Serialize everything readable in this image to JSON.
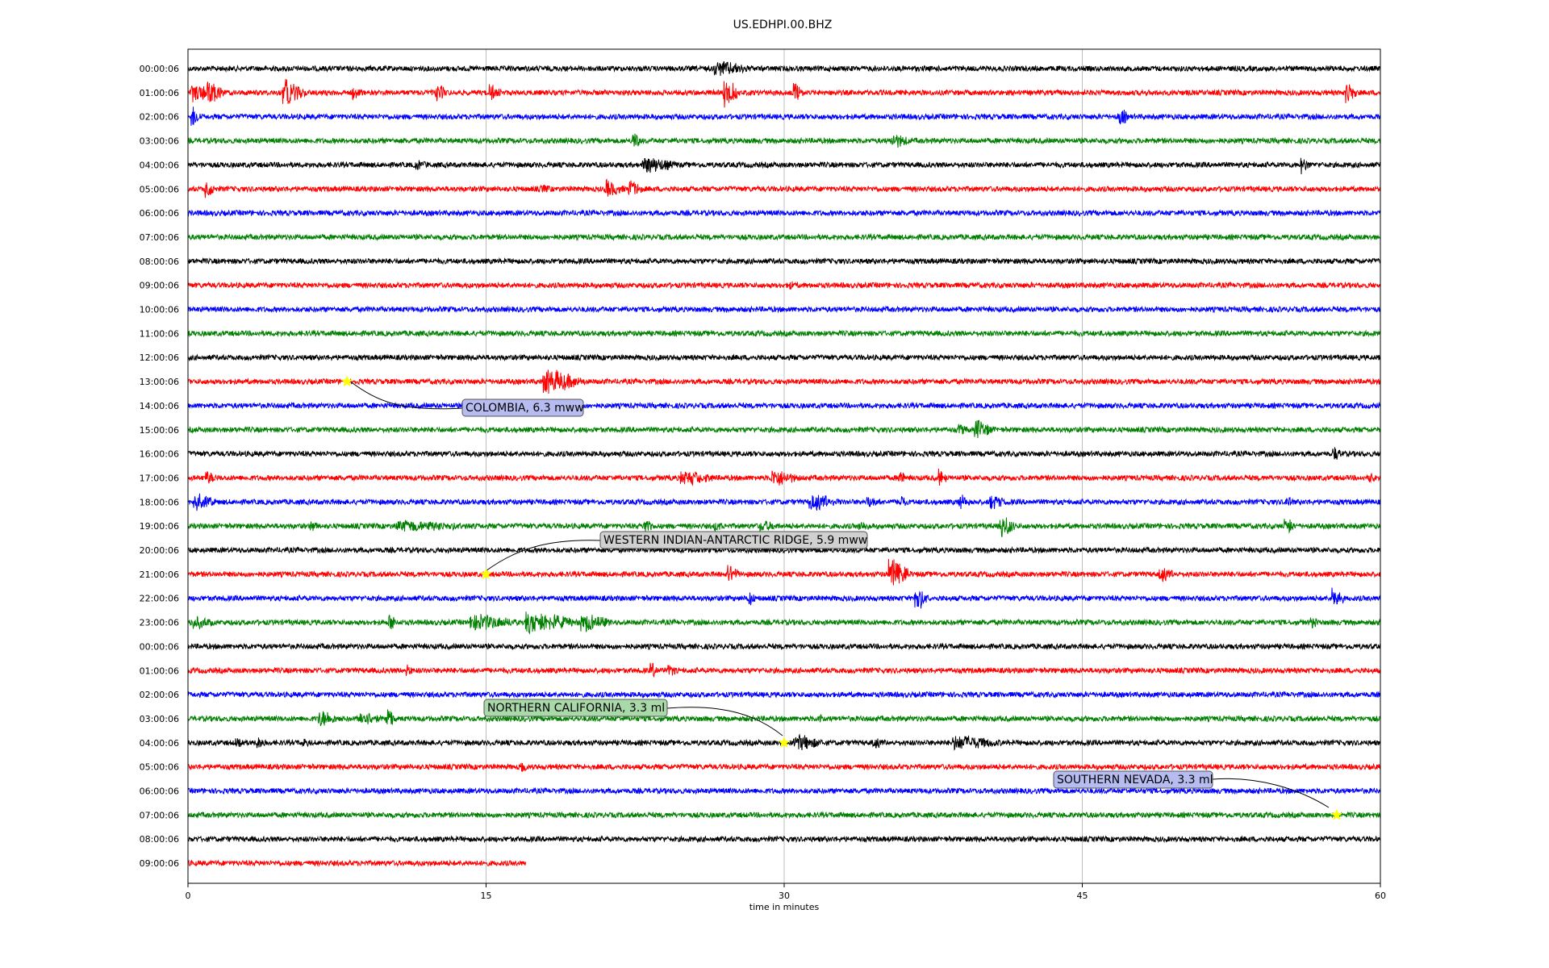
{
  "chart_data": {
    "type": "line",
    "title": "US.EDHPI.00.BHZ",
    "xlabel": "time in minutes",
    "xlim": [
      0,
      60
    ],
    "xticks": [
      0,
      15,
      30,
      45,
      60
    ],
    "grid": "vertical",
    "row_colors": [
      "#000000",
      "#ff0000",
      "#0000ff",
      "#008000"
    ],
    "rows": [
      {
        "label": "00:00:06",
        "end": 60,
        "events": [
          {
            "t": 26.5,
            "a": 0.5,
            "d": 2.0
          }
        ]
      },
      {
        "label": "01:00:06",
        "end": 60,
        "events": [
          {
            "t": 0.2,
            "a": 0.6,
            "d": 1.5
          },
          {
            "t": 1.0,
            "a": 0.7,
            "d": 1.0
          },
          {
            "t": 4.8,
            "a": 1.0,
            "d": 1.2
          },
          {
            "t": 8.3,
            "a": 0.4,
            "d": 0.5
          },
          {
            "t": 12.5,
            "a": 0.6,
            "d": 0.6
          },
          {
            "t": 15.2,
            "a": 0.5,
            "d": 0.6
          },
          {
            "t": 27.0,
            "a": 1.2,
            "d": 0.8
          },
          {
            "t": 30.5,
            "a": 0.6,
            "d": 0.5
          },
          {
            "t": 58.3,
            "a": 1.0,
            "d": 0.6
          }
        ]
      },
      {
        "label": "02:00:06",
        "end": 60,
        "events": [
          {
            "t": 0.2,
            "a": 0.8,
            "d": 0.5
          },
          {
            "t": 46.9,
            "a": 0.8,
            "d": 0.4
          }
        ]
      },
      {
        "label": "03:00:06",
        "end": 60,
        "events": [
          {
            "t": 22.4,
            "a": 0.6,
            "d": 0.4
          },
          {
            "t": 35.4,
            "a": 0.5,
            "d": 1.0
          }
        ]
      },
      {
        "label": "04:00:06",
        "end": 60,
        "events": [
          {
            "t": 11.5,
            "a": 0.3,
            "d": 0.5
          },
          {
            "t": 22.9,
            "a": 0.6,
            "d": 1.8
          },
          {
            "t": 56.0,
            "a": 0.6,
            "d": 0.5
          }
        ]
      },
      {
        "label": "05:00:06",
        "end": 60,
        "events": [
          {
            "t": 0.9,
            "a": 0.6,
            "d": 0.5
          },
          {
            "t": 17.8,
            "a": 0.2,
            "d": 0.5
          },
          {
            "t": 21.0,
            "a": 0.6,
            "d": 1.0
          },
          {
            "t": 22.2,
            "a": 0.6,
            "d": 0.7
          }
        ]
      },
      {
        "label": "06:00:06",
        "end": 60,
        "events": []
      },
      {
        "label": "07:00:06",
        "end": 60,
        "events": []
      },
      {
        "label": "08:00:06",
        "end": 60,
        "events": []
      },
      {
        "label": "09:00:06",
        "end": 60,
        "events": [
          {
            "t": 30.3,
            "a": 0.2,
            "d": 0.3
          }
        ]
      },
      {
        "label": "10:00:06",
        "end": 60,
        "events": []
      },
      {
        "label": "11:00:06",
        "end": 60,
        "events": []
      },
      {
        "label": "12:00:06",
        "end": 60,
        "events": []
      },
      {
        "label": "13:00:06",
        "end": 60,
        "events": [
          {
            "t": 17.9,
            "a": 0.9,
            "d": 2.2
          }
        ]
      },
      {
        "label": "14:00:06",
        "end": 60,
        "events": []
      },
      {
        "label": "15:00:06",
        "end": 60,
        "events": [
          {
            "t": 38.8,
            "a": 0.3,
            "d": 0.6
          },
          {
            "t": 39.6,
            "a": 0.7,
            "d": 1.0
          }
        ]
      },
      {
        "label": "16:00:06",
        "end": 60,
        "events": [
          {
            "t": 57.6,
            "a": 0.5,
            "d": 0.5
          }
        ]
      },
      {
        "label": "17:00:06",
        "end": 60,
        "events": [
          {
            "t": 0.9,
            "a": 0.5,
            "d": 0.5
          },
          {
            "t": 24.8,
            "a": 0.5,
            "d": 1.8
          },
          {
            "t": 29.4,
            "a": 0.6,
            "d": 1.4
          },
          {
            "t": 35.8,
            "a": 0.7,
            "d": 0.3
          },
          {
            "t": 37.8,
            "a": 0.6,
            "d": 0.4
          },
          {
            "t": 59.5,
            "a": 0.3,
            "d": 0.3
          }
        ]
      },
      {
        "label": "18:00:06",
        "end": 60,
        "events": [
          {
            "t": 0.3,
            "a": 0.6,
            "d": 1.2
          },
          {
            "t": 31.3,
            "a": 0.6,
            "d": 1.6
          },
          {
            "t": 34.2,
            "a": 0.4,
            "d": 0.6
          },
          {
            "t": 35.8,
            "a": 0.5,
            "d": 0.4
          },
          {
            "t": 38.8,
            "a": 0.5,
            "d": 0.6
          },
          {
            "t": 40.4,
            "a": 0.5,
            "d": 0.8
          },
          {
            "t": 55.3,
            "a": 0.3,
            "d": 0.3
          }
        ]
      },
      {
        "label": "19:00:06",
        "end": 60,
        "events": [
          {
            "t": 6.2,
            "a": 0.3,
            "d": 0.4
          },
          {
            "t": 10.5,
            "a": 0.3,
            "d": 4.0
          },
          {
            "t": 23.0,
            "a": 0.6,
            "d": 0.5
          },
          {
            "t": 26.5,
            "a": 0.3,
            "d": 0.4
          },
          {
            "t": 28.8,
            "a": 0.3,
            "d": 1.0
          },
          {
            "t": 33.8,
            "a": 0.3,
            "d": 0.6
          },
          {
            "t": 40.9,
            "a": 0.9,
            "d": 0.8
          },
          {
            "t": 55.2,
            "a": 0.8,
            "d": 0.5
          }
        ]
      },
      {
        "label": "20:00:06",
        "end": 60,
        "events": []
      },
      {
        "label": "21:00:06",
        "end": 60,
        "events": [
          {
            "t": 27.2,
            "a": 0.6,
            "d": 0.6
          },
          {
            "t": 35.3,
            "a": 1.1,
            "d": 1.2
          },
          {
            "t": 48.9,
            "a": 0.5,
            "d": 0.8
          }
        ]
      },
      {
        "label": "22:00:06",
        "end": 60,
        "events": [
          {
            "t": 28.2,
            "a": 0.5,
            "d": 0.4
          },
          {
            "t": 36.6,
            "a": 1.0,
            "d": 0.7
          },
          {
            "t": 57.6,
            "a": 0.9,
            "d": 0.6
          }
        ]
      },
      {
        "label": "23:00:06",
        "end": 60,
        "events": [
          {
            "t": 0.2,
            "a": 0.4,
            "d": 1.2
          },
          {
            "t": 10.1,
            "a": 0.7,
            "d": 0.5
          },
          {
            "t": 14.2,
            "a": 0.6,
            "d": 2.5
          },
          {
            "t": 17.0,
            "a": 0.8,
            "d": 2.8
          },
          {
            "t": 19.8,
            "a": 0.6,
            "d": 1.6
          },
          {
            "t": 56.5,
            "a": 0.3,
            "d": 0.4
          }
        ]
      },
      {
        "label": "00:00:06",
        "end": 60,
        "events": []
      },
      {
        "label": "01:00:06",
        "end": 60,
        "events": [
          {
            "t": 11.0,
            "a": 0.4,
            "d": 0.3
          },
          {
            "t": 23.3,
            "a": 0.5,
            "d": 0.4
          },
          {
            "t": 24.2,
            "a": 0.5,
            "d": 0.4
          }
        ]
      },
      {
        "label": "02:00:06",
        "end": 60,
        "events": []
      },
      {
        "label": "03:00:06",
        "end": 60,
        "events": [
          {
            "t": 6.6,
            "a": 0.6,
            "d": 1.0
          },
          {
            "t": 8.7,
            "a": 0.6,
            "d": 1.0
          },
          {
            "t": 10.0,
            "a": 0.8,
            "d": 0.5
          },
          {
            "t": 31.8,
            "a": 0.3,
            "d": 0.3
          }
        ]
      },
      {
        "label": "04:00:06",
        "end": 60,
        "events": [
          {
            "t": 2.4,
            "a": 0.3,
            "d": 0.5
          },
          {
            "t": 3.5,
            "a": 0.3,
            "d": 0.4
          },
          {
            "t": 5.8,
            "a": 0.2,
            "d": 0.4
          },
          {
            "t": 30.5,
            "a": 0.6,
            "d": 1.5
          },
          {
            "t": 34.5,
            "a": 0.3,
            "d": 0.6
          },
          {
            "t": 38.5,
            "a": 0.5,
            "d": 2.5
          }
        ]
      },
      {
        "label": "05:00:06",
        "end": 60,
        "events": [
          {
            "t": 16.8,
            "a": 0.3,
            "d": 0.3
          }
        ]
      },
      {
        "label": "06:00:06",
        "end": 60,
        "events": []
      },
      {
        "label": "07:00:06",
        "end": 60,
        "events": []
      },
      {
        "label": "08:00:06",
        "end": 60,
        "events": []
      },
      {
        "label": "09:00:06",
        "end": 17.0,
        "events": []
      }
    ],
    "annotations": [
      {
        "text": "COLOMBIA, 6.3 mww",
        "row": 13,
        "t": 8.0
      },
      {
        "text": "WESTERN INDIAN-ANTARCTIC RIDGE, 5.9 mww",
        "row": 21,
        "t": 15.0
      },
      {
        "text": "NORTHERN CALIFORNIA, 3.3 ml",
        "row": 28,
        "t": 30.0
      },
      {
        "text": "SOUTHERN NEVADA, 3.3 ml",
        "row": 31,
        "t": 57.8
      }
    ]
  }
}
